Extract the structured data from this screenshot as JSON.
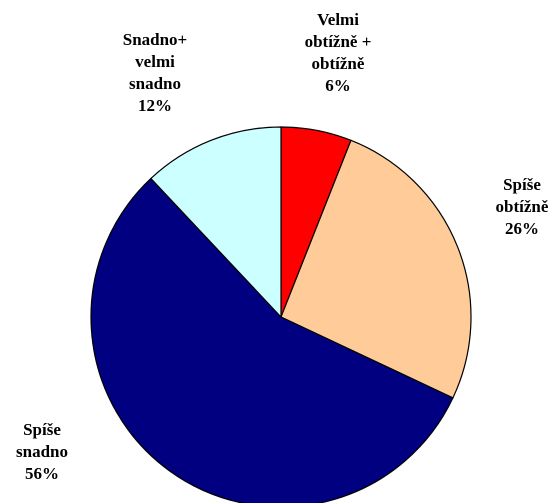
{
  "chart_data": {
    "type": "pie",
    "categories": [
      "Velmi\nobtížně +\nobtížně",
      "Spíše\nobtížně",
      "Spíše\nsnadno",
      "Snadno+\nvelmi\nsnadno"
    ],
    "values": [
      6,
      26,
      56,
      12
    ],
    "value_labels": [
      "6%",
      "26%",
      "56%",
      "12%"
    ],
    "colors": [
      "#ff0000",
      "#ffcc99",
      "#000080",
      "#ccffff"
    ]
  }
}
